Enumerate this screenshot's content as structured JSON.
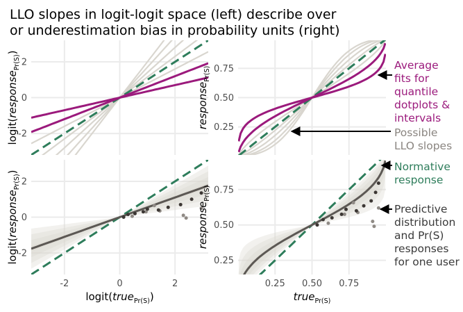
{
  "title_line1": "LLO slopes in logit-logit space (left) describe over",
  "title_line2": "or underestimation bias in probability units (right)",
  "colors": {
    "purple": "#9b1a7c",
    "green": "#2e7d5b",
    "gray_light": "#d9d6cf",
    "gray_dark": "#5c5854",
    "gray_text": "#8a8580",
    "point": "#3c3734",
    "grid": "#ebebeb"
  },
  "annotations": {
    "average_fits": [
      "Average",
      "fits for",
      "quantile",
      "dotplots &",
      "intervals"
    ],
    "possible_llo": [
      "Possible",
      "LLO slopes"
    ],
    "normative": [
      "Normative",
      "response"
    ],
    "predictive": [
      "Predictive",
      "distribution",
      "and Pr(S)",
      "responses",
      "for one user"
    ]
  },
  "chart_data": [
    {
      "type": "line",
      "panel": "top-left",
      "space": "logit",
      "xlim": [
        -3.2,
        3.2
      ],
      "ylim": [
        -3.2,
        3.2
      ],
      "x_ticks": [],
      "y_ticks": [
        -2,
        0,
        2
      ],
      "ylabel_main": "logit(",
      "ylabel_italic": "response",
      "ylabel_sub": "Pr(S)",
      "ylabel_close": ")",
      "possible_slopes": [
        0.8,
        1.15,
        1.4,
        1.7,
        2.0
      ],
      "average_fit_slopes": [
        0.35,
        0.6
      ],
      "normative_slope": 1.0
    },
    {
      "type": "line",
      "panel": "top-right",
      "space": "probability",
      "xlim": [
        0.0,
        1.0
      ],
      "ylim": [
        0.01,
        0.99
      ],
      "x_ticks": [],
      "y_ticks": [
        "0.25",
        "0.50",
        "0.75"
      ],
      "ylabel_italic": "response",
      "ylabel_sub": "Pr(S)",
      "possible_slopes": [
        0.8,
        1.15,
        1.4,
        1.7,
        2.0
      ],
      "average_fit_slopes": [
        0.35,
        0.6
      ],
      "normative_slope": 1.0
    },
    {
      "type": "scatter",
      "panel": "bottom-left",
      "space": "logit",
      "xlim": [
        -3.2,
        3.2
      ],
      "ylim": [
        -3.2,
        3.2
      ],
      "x_ticks": [
        -2,
        0,
        2
      ],
      "y_ticks": [
        -2,
        0,
        2
      ],
      "xlabel_main": "logit(",
      "xlabel_italic": "true",
      "xlabel_sub": "Pr(S)",
      "xlabel_close": ")",
      "ylabel_main": "logit(",
      "ylabel_italic": "response",
      "ylabel_sub": "Pr(S)",
      "ylabel_close": ")",
      "user_fit_slope": 0.55,
      "band_slopes": [
        0.2,
        0.3,
        0.4,
        0.5,
        0.6,
        0.7,
        0.8,
        0.9
      ],
      "normative_slope": 1.0,
      "points_dark": [
        [
          0.14,
          0.0
        ],
        [
          0.3,
          0.15
        ],
        [
          0.55,
          0.2
        ],
        [
          0.85,
          0.3
        ],
        [
          1.0,
          0.45
        ],
        [
          1.4,
          0.4
        ],
        [
          1.75,
          0.55
        ],
        [
          2.2,
          0.7
        ],
        [
          2.6,
          1.0
        ],
        [
          2.95,
          1.35
        ]
      ],
      "points_light": [
        [
          0.45,
          0.05
        ],
        [
          0.95,
          0.3
        ],
        [
          1.25,
          0.65
        ],
        [
          1.45,
          0.35
        ],
        [
          2.3,
          0.1
        ],
        [
          2.4,
          -0.05
        ],
        [
          2.95,
          0.5
        ]
      ]
    },
    {
      "type": "scatter",
      "panel": "bottom-right",
      "space": "probability",
      "xlim": [
        0.0,
        1.0
      ],
      "ylim": [
        0.15,
        0.96
      ],
      "x_ticks": [
        "0.25",
        "0.50",
        "0.75"
      ],
      "y_ticks": [
        "0.25",
        "0.50",
        "0.75"
      ],
      "xlabel_italic": "true",
      "xlabel_sub": "Pr(S)",
      "ylabel_italic": "response",
      "ylabel_sub": "Pr(S)",
      "user_fit_slope": 0.55,
      "band_slopes": [
        0.2,
        0.3,
        0.4,
        0.5,
        0.6,
        0.7,
        0.8,
        0.9
      ],
      "normative_slope": 1.0,
      "points_dark": [
        [
          0.535,
          0.5
        ],
        [
          0.575,
          0.538
        ],
        [
          0.635,
          0.55
        ],
        [
          0.7,
          0.575
        ],
        [
          0.73,
          0.61
        ],
        [
          0.8,
          0.6
        ],
        [
          0.85,
          0.635
        ],
        [
          0.9,
          0.67
        ],
        [
          0.93,
          0.73
        ],
        [
          0.95,
          0.795
        ]
      ],
      "points_light": [
        [
          0.61,
          0.512
        ],
        [
          0.72,
          0.575
        ],
        [
          0.78,
          0.657
        ],
        [
          0.81,
          0.588
        ],
        [
          0.91,
          0.525
        ],
        [
          0.92,
          0.49
        ],
        [
          0.95,
          0.62
        ]
      ]
    }
  ]
}
